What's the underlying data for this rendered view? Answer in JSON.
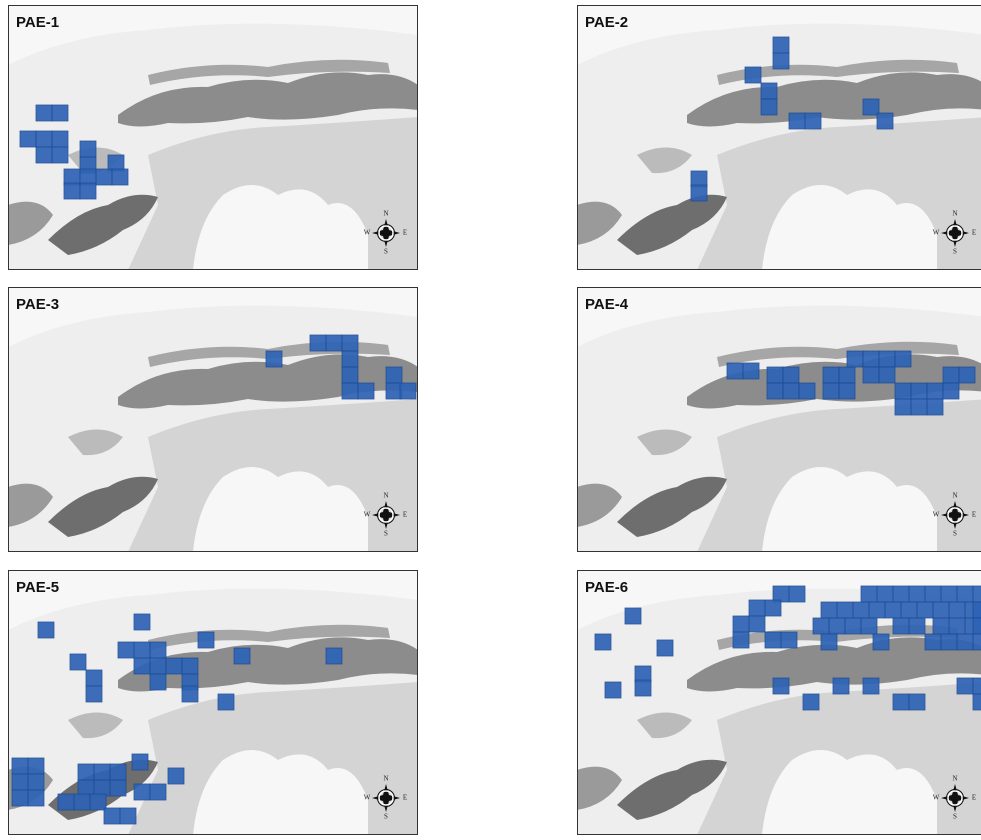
{
  "panels": [
    {
      "label": "PAE-1"
    },
    {
      "label": "PAE-2"
    },
    {
      "label": "PAE-3"
    },
    {
      "label": "PAE-4"
    },
    {
      "label": "PAE-5"
    },
    {
      "label": "PAE-6"
    }
  ],
  "compass": {
    "north": "N",
    "east": "E",
    "south": "S",
    "west": "W"
  }
}
